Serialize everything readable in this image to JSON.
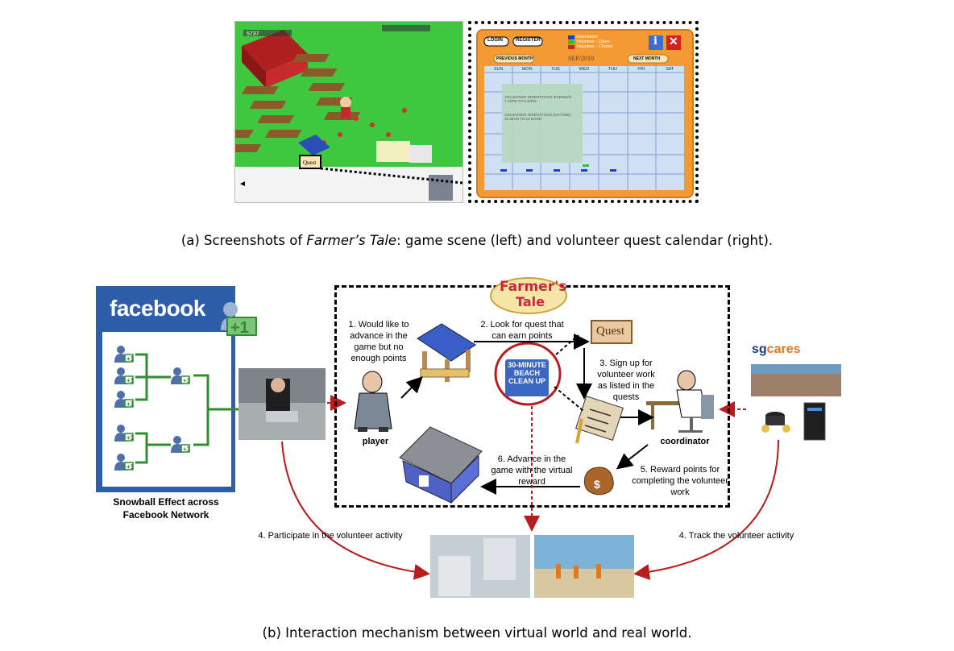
{
  "panel_a": {
    "calendar": {
      "login": "LOGIN",
      "register": "REGISTER",
      "legend": [
        {
          "label": "Orientation",
          "color": "#1a3fd6"
        },
        {
          "label": "Volunteer - Open",
          "color": "#2fbf3a"
        },
        {
          "label": "Volunteer - Closed",
          "color": "#d62020"
        }
      ],
      "prev_month": "PREVIOUS MONTH",
      "next_month": "NEXT MONTH",
      "month": "SEP/2010",
      "days": [
        "SUN",
        "MON",
        "TUE",
        "WED",
        "THU",
        "FRI",
        "SAT"
      ],
      "event_1": "VOLUNTEER ORIENTATION (EVENING) 7.15PM TO 8.30PM",
      "event_2": "VOLUNTEER ORIENTATION (DAYTIME) 10.30AM TO 12 NOON",
      "info_icon": "info-icon",
      "close_icon": "close-icon"
    },
    "game": {
      "quest_label": "Quest",
      "score": "5737"
    },
    "caption_pre": "(a) Screenshots of ",
    "caption_italic": "Farmer’s Tale",
    "caption_post": ": game scene (left) and volunteer quest calendar (right)."
  },
  "panel_b": {
    "facebook_title": "facebook",
    "snowball_label": "Snowball Effect across Facebook Network",
    "logo_line1": "Farmer's",
    "logo_line2": "Tale",
    "step1": "1. Would like to advance in the game but no enough points",
    "step2": "2. Look for quest that can earn points",
    "step3": "3. Sign up for volunteer work as listed in the quests",
    "step5": "5. Reward points for completing the volunteer work",
    "step6": "6. Advance in the game with the virtual reward",
    "step4_left": "4. Participate in the volunteer activity",
    "step4_right": "4. Track the volunteer activity",
    "player_label": "player",
    "coordinator_label": "coordinator",
    "quest_scroll": "Quest",
    "beach_badge": "30-MINUTE BEACH CLEAN UP",
    "sgcares_sg": "sg",
    "sgcares_cares": "cares",
    "colors": {
      "facebook": "#2e5ea8",
      "arrow_red": "#b81c1c",
      "tree_green": "#2f8f2f",
      "sgcares_orange": "#e8731e"
    },
    "caption": "(b) Interaction mechanism between virtual world and real world."
  }
}
